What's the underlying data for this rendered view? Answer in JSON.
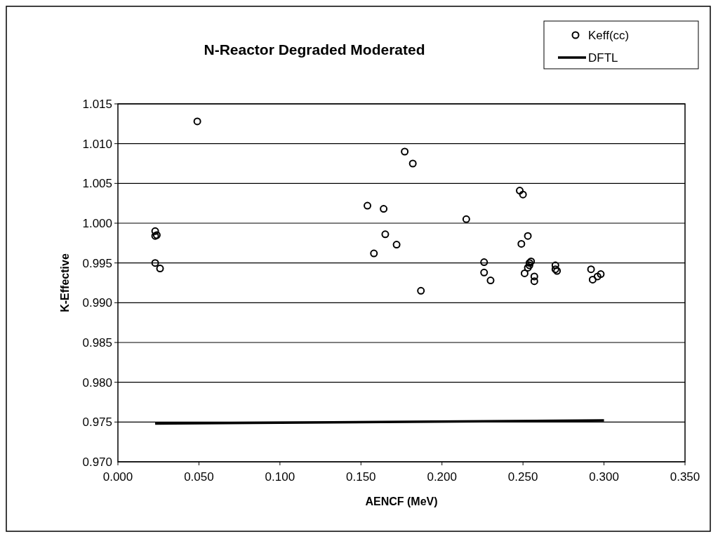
{
  "chart_data": {
    "type": "scatter",
    "title": "N-Reactor Degraded Moderated",
    "xlabel": "AENCF (MeV)",
    "ylabel": "K-Effective",
    "xlim": [
      0,
      0.35
    ],
    "xticks": [
      {
        "value": 0,
        "label": "0.000"
      },
      {
        "value": 0.05,
        "label": "0.050"
      },
      {
        "value": 0.1,
        "label": "0.100"
      },
      {
        "value": 0.15,
        "label": "0.150"
      },
      {
        "value": 0.2,
        "label": "0.200"
      },
      {
        "value": 0.25,
        "label": "0.250"
      },
      {
        "value": 0.3,
        "label": "0.300"
      },
      {
        "value": 0.35,
        "label": "0.350"
      }
    ],
    "ylim": [
      0.97,
      1.015
    ],
    "yticks": [
      {
        "value": 0.97,
        "label": "0.970"
      },
      {
        "value": 0.975,
        "label": "0.975"
      },
      {
        "value": 0.98,
        "label": "0.980"
      },
      {
        "value": 0.985,
        "label": "0.985"
      },
      {
        "value": 0.99,
        "label": "0.990"
      },
      {
        "value": 0.995,
        "label": "0.995"
      },
      {
        "value": 1,
        "label": "1.000"
      },
      {
        "value": 1.005,
        "label": "1.005"
      },
      {
        "value": 1.01,
        "label": "1.010"
      },
      {
        "value": 1.015,
        "label": "1.015"
      }
    ],
    "grid": "y",
    "legend": "top right",
    "series": [
      {
        "name": "Keff(cc)",
        "marker": "circle",
        "color": "#000000",
        "x": [
          0.049,
          0.023,
          0.024,
          0.023,
          0.023,
          0.026,
          0.154,
          0.158,
          0.164,
          0.165,
          0.172,
          0.177,
          0.182,
          0.187,
          0.215,
          0.226,
          0.226,
          0.23,
          0.248,
          0.25,
          0.249,
          0.253,
          0.255,
          0.254,
          0.254,
          0.253,
          0.251,
          0.257,
          0.257,
          0.27,
          0.27,
          0.271,
          0.292,
          0.293,
          0.296,
          0.298
        ],
        "values": [
          1.0128,
          0.999,
          0.9985,
          0.9984,
          0.995,
          0.9943,
          1.0022,
          0.9962,
          1.0018,
          0.9986,
          0.9973,
          1.009,
          1.0075,
          0.9915,
          1.0005,
          0.9951,
          0.9938,
          0.9928,
          1.0041,
          1.0036,
          0.9974,
          0.9984,
          0.9952,
          0.995,
          0.9947,
          0.9944,
          0.9937,
          0.9933,
          0.9927,
          0.9947,
          0.9942,
          0.994,
          0.9942,
          0.9929,
          0.9933,
          0.9936
        ]
      },
      {
        "name": "DFTL",
        "type": "line",
        "marker": "none",
        "color": "#000000",
        "x": [
          0.023,
          0.3
        ],
        "values": [
          0.9748,
          0.9752
        ]
      }
    ]
  }
}
